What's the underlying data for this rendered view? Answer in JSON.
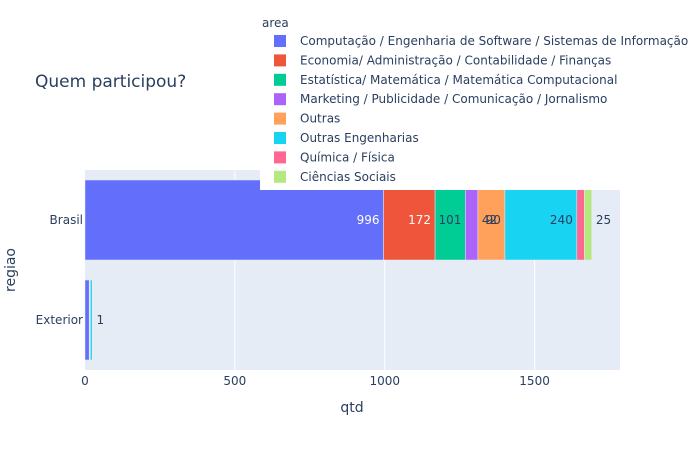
{
  "chart_data": {
    "type": "bar",
    "orientation": "horizontal",
    "barmode": "stack",
    "title": "Quem participou?",
    "xlabel": "qtd",
    "ylabel": "regiao",
    "legend_title": "area",
    "legend_position": "top-right",
    "grid": true,
    "xlim": [
      0,
      1785
    ],
    "xticks": [
      "0",
      "500",
      "1000",
      "1500"
    ],
    "xtick_values": [
      0,
      500,
      1000,
      1500
    ],
    "categories": [
      "Brasil",
      "Exterior"
    ],
    "series": [
      {
        "name": "Computação / Engenharia de Software / Sistemas de Informação",
        "color": "#636efa",
        "values": [
          996,
          14
        ],
        "labels": [
          "996",
          ""
        ]
      },
      {
        "name": "Economia/ Administração / Contabilidade / Finanças",
        "color": "#EF553B",
        "values": [
          172,
          1
        ],
        "labels": [
          "172",
          ""
        ]
      },
      {
        "name": "Estatística/ Matemática / Matemática Computacional",
        "color": "#00cc96",
        "values": [
          101,
          1
        ],
        "labels": [
          "101",
          ""
        ]
      },
      {
        "name": "Marketing / Publicidade / Comunicação / Jornalismo",
        "color": "#ab63fa",
        "values": [
          42,
          1
        ],
        "labels": [
          "42",
          ""
        ]
      },
      {
        "name": "Outras",
        "color": "#FFA15A",
        "values": [
          90,
          1
        ],
        "labels": [
          "90",
          ""
        ]
      },
      {
        "name": "Outras Engenharias",
        "color": "#19d3f3",
        "values": [
          240,
          6
        ],
        "labels": [
          "240",
          ""
        ]
      },
      {
        "name": "Química / Física",
        "color": "#FF6692",
        "values": [
          25,
          0
        ],
        "labels": [
          "",
          ""
        ]
      },
      {
        "name": "Ciências Sociais",
        "color": "#B6E880",
        "values": [
          25,
          1
        ],
        "labels": [
          "25",
          "1"
        ]
      }
    ]
  }
}
